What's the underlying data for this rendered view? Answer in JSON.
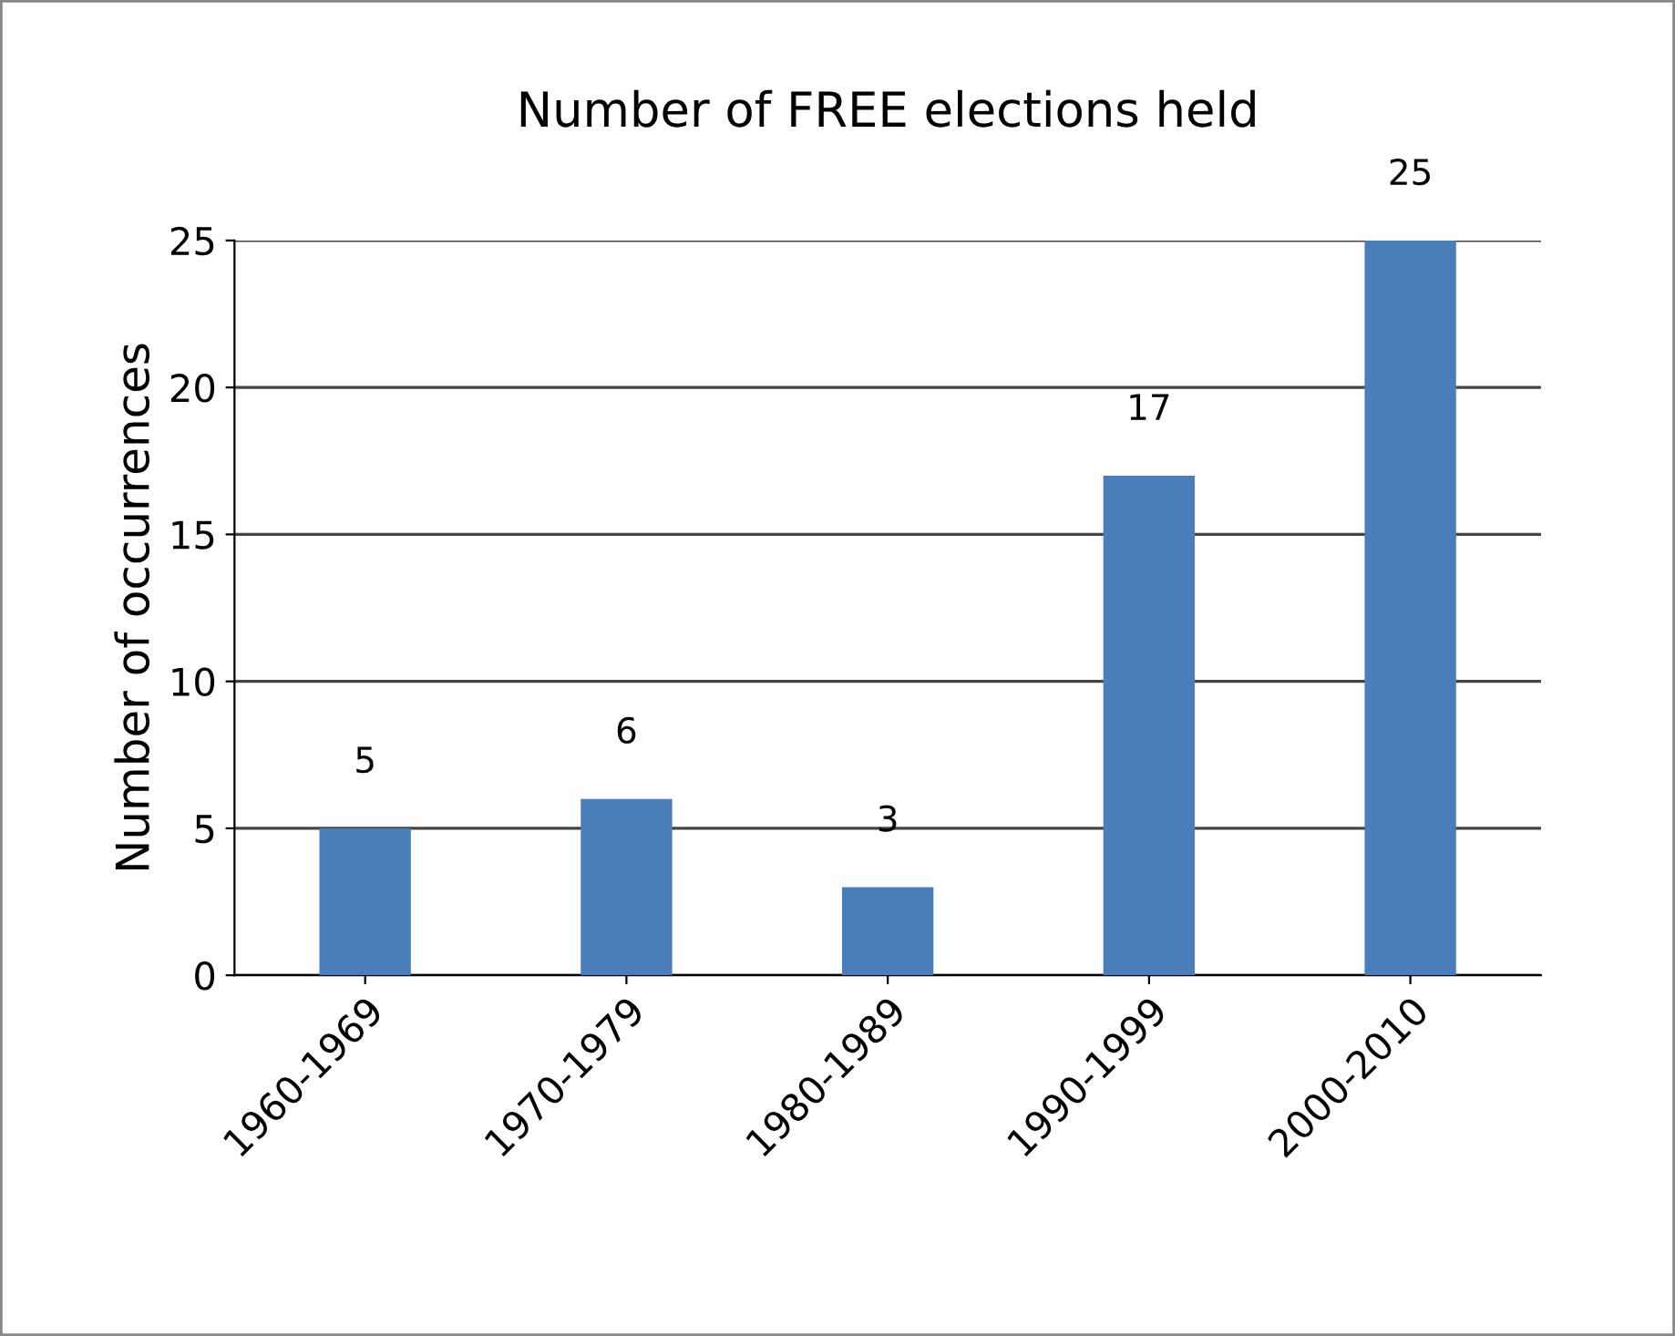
{
  "chart_data": {
    "type": "bar",
    "title": "Number of FREE elections held",
    "ylabel": "Number of occurrences",
    "categories": [
      "1960-1969",
      "1970-1979",
      "1980-1989",
      "1990-1999",
      "2000-2010"
    ],
    "values": [
      5,
      6,
      3,
      17,
      25
    ],
    "color": "#4a7ebb",
    "ylim": [
      0,
      25
    ],
    "yticks": [
      0,
      5,
      10,
      15,
      20,
      25
    ],
    "grid": "y",
    "data_labels": true
  }
}
